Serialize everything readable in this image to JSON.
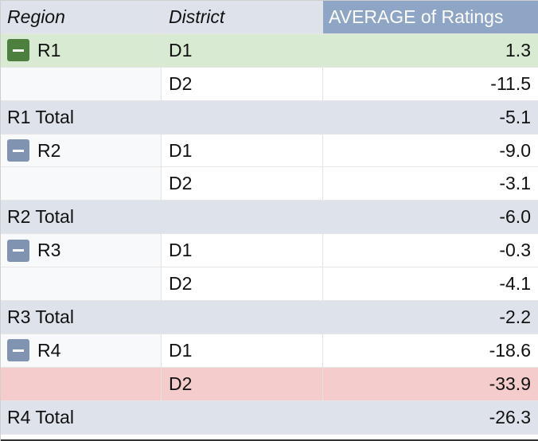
{
  "header": {
    "region_label": "Region",
    "district_label": "District",
    "value_label": "AVERAGE of Ratings"
  },
  "rows": [
    {
      "region": "R1",
      "district": "D1",
      "value": "1.3"
    },
    {
      "region": "",
      "district": "D2",
      "value": "-11.5"
    },
    {
      "total_label": "R1 Total",
      "value": "-5.1"
    },
    {
      "region": "R2",
      "district": "D1",
      "value": "-9.0"
    },
    {
      "region": "",
      "district": "D2",
      "value": "-3.1"
    },
    {
      "total_label": "R2 Total",
      "value": "-6.0"
    },
    {
      "region": "R3",
      "district": "D1",
      "value": "-0.3"
    },
    {
      "region": "",
      "district": "D2",
      "value": "-4.1"
    },
    {
      "total_label": "R3 Total",
      "value": "-2.2"
    },
    {
      "region": "R4",
      "district": "D1",
      "value": "-18.6"
    },
    {
      "region": "",
      "district": "D2",
      "value": "-33.9"
    },
    {
      "total_label": "R4 Total",
      "value": "-26.3"
    }
  ],
  "icons": {
    "collapse": "minus-icon"
  },
  "colors": {
    "header_value_bg": "#8fa5c6",
    "total_row_bg": "#dee3eb",
    "highlight_green": "#d9ead3",
    "highlight_red": "#f4cccc",
    "toggle_default": "#8094b2",
    "toggle_active": "#4d7f3f"
  }
}
